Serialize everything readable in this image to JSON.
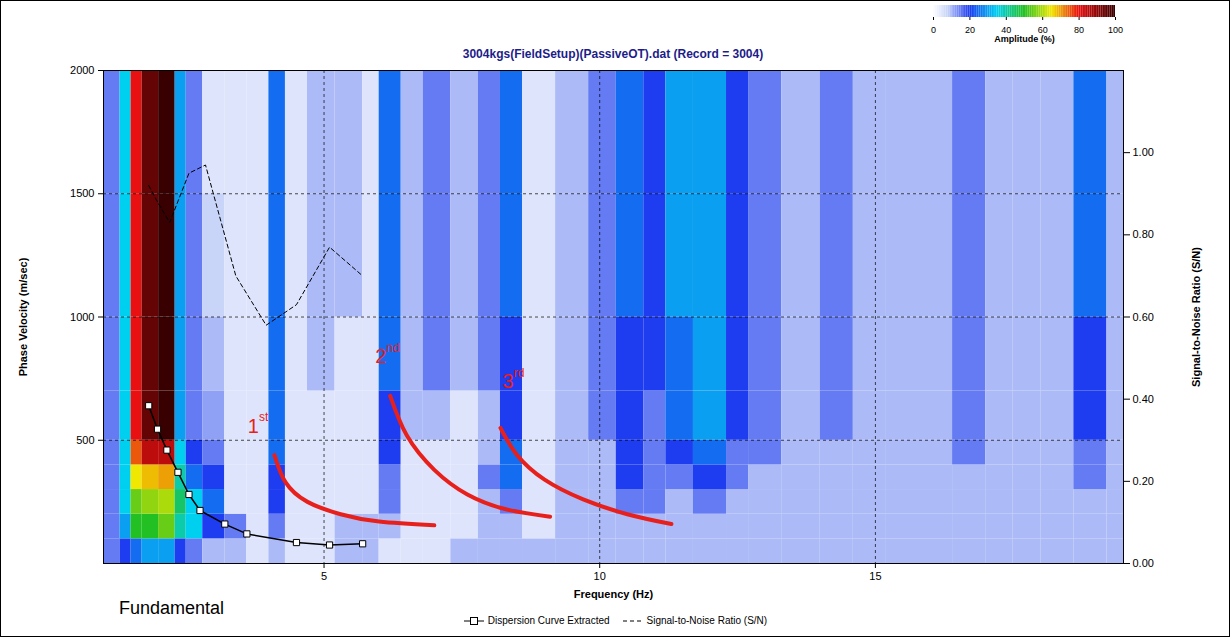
{
  "chart_data": {
    "type": "heatmap",
    "title": "3004kgs(FieldSetup)(PassiveOT).dat (Record = 3004)",
    "x_label": "Frequency (Hz)",
    "y_label": "Phase Velocity (m/sec)",
    "y2_label": "Signal-to-Noise Ratio (S/N)",
    "xlim": [
      1,
      19.5
    ],
    "xticks": [
      5,
      10,
      15
    ],
    "ylim": [
      0,
      2000
    ],
    "yticks": [
      500,
      1000,
      1500,
      2000
    ],
    "y2lim": [
      0,
      1.2
    ],
    "y2ticks": [
      {
        "value": 0,
        "label": "0.00"
      },
      {
        "value": 0.2,
        "label": "0.20"
      },
      {
        "value": 0.4,
        "label": "0.40"
      },
      {
        "value": 0.6,
        "label": "0.60"
      },
      {
        "value": 0.8,
        "label": "0.80"
      },
      {
        "value": 1.0,
        "label": "1.00"
      }
    ],
    "grid": true,
    "legend": "bottom",
    "heatmap": {
      "x_edges": [
        1,
        1.3,
        1.5,
        1.7,
        2.0,
        2.3,
        2.5,
        2.8,
        3.2,
        3.6,
        4.0,
        4.3,
        4.7,
        5.2,
        5.7,
        6.0,
        6.4,
        6.8,
        7.3,
        7.8,
        8.2,
        8.6,
        9.2,
        9.8,
        10.3,
        10.8,
        11.2,
        11.7,
        12.3,
        12.7,
        13.3,
        14,
        14.6,
        15.2,
        15.8,
        16.4,
        17.0,
        17.5,
        18.0,
        18.6,
        19.2,
        19.5
      ],
      "y_edges": [
        0,
        100,
        200,
        300,
        400,
        500,
        700,
        1000,
        1500,
        2000
      ],
      "cells": [
        [
          15,
          15,
          15,
          15,
          15,
          15,
          15,
          15,
          15
        ],
        [
          20,
          30,
          35,
          35,
          35,
          35,
          35,
          35,
          35
        ],
        [
          25,
          50,
          55,
          65,
          75,
          80,
          80,
          80,
          80
        ],
        [
          30,
          50,
          58,
          68,
          85,
          95,
          95,
          95,
          95
        ],
        [
          30,
          55,
          60,
          70,
          85,
          100,
          100,
          100,
          100
        ],
        [
          20,
          40,
          45,
          40,
          35,
          30,
          30,
          30,
          30
        ],
        [
          15,
          35,
          35,
          25,
          20,
          15,
          15,
          15,
          15
        ],
        [
          10,
          20,
          25,
          20,
          15,
          12,
          10,
          8,
          5
        ],
        [
          10,
          15,
          5,
          5,
          5,
          5,
          5,
          5,
          5
        ],
        [
          5,
          5,
          5,
          5,
          5,
          5,
          5,
          5,
          5
        ],
        [
          10,
          15,
          20,
          20,
          25,
          25,
          25,
          25,
          25
        ],
        [
          5,
          5,
          5,
          5,
          5,
          5,
          5,
          5,
          5
        ],
        [
          5,
          5,
          5,
          5,
          5,
          5,
          10,
          10,
          10
        ],
        [
          10,
          10,
          5,
          5,
          5,
          5,
          5,
          10,
          10
        ],
        [
          10,
          10,
          5,
          5,
          5,
          5,
          5,
          5,
          5
        ],
        [
          5,
          10,
          15,
          15,
          20,
          20,
          25,
          25,
          25
        ],
        [
          5,
          5,
          5,
          5,
          5,
          10,
          10,
          10,
          10
        ],
        [
          5,
          5,
          5,
          5,
          5,
          10,
          15,
          15,
          15
        ],
        [
          10,
          5,
          5,
          5,
          5,
          5,
          10,
          10,
          10
        ],
        [
          10,
          10,
          10,
          15,
          10,
          10,
          15,
          15,
          15
        ],
        [
          10,
          10,
          15,
          25,
          25,
          20,
          20,
          25,
          25
        ],
        [
          10,
          5,
          5,
          5,
          5,
          5,
          5,
          5,
          5
        ],
        [
          10,
          10,
          10,
          10,
          10,
          10,
          10,
          10,
          10
        ],
        [
          10,
          10,
          10,
          10,
          10,
          15,
          15,
          15,
          15
        ],
        [
          10,
          10,
          15,
          20,
          20,
          20,
          20,
          25,
          25
        ],
        [
          10,
          10,
          15,
          15,
          15,
          15,
          20,
          20,
          20
        ],
        [
          10,
          10,
          10,
          15,
          20,
          25,
          25,
          30,
          30
        ],
        [
          10,
          10,
          15,
          20,
          25,
          30,
          30,
          30,
          30
        ],
        [
          10,
          10,
          10,
          15,
          15,
          20,
          20,
          20,
          20
        ],
        [
          10,
          10,
          10,
          10,
          15,
          15,
          15,
          15,
          15
        ],
        [
          10,
          10,
          10,
          10,
          10,
          10,
          10,
          10,
          10
        ],
        [
          10,
          10,
          10,
          10,
          10,
          15,
          15,
          15,
          15
        ],
        [
          10,
          10,
          10,
          10,
          10,
          10,
          10,
          10,
          10
        ],
        [
          10,
          10,
          10,
          10,
          10,
          10,
          10,
          10,
          10
        ],
        [
          10,
          10,
          10,
          10,
          10,
          10,
          10,
          10,
          10
        ],
        [
          10,
          10,
          10,
          10,
          15,
          15,
          15,
          15,
          15
        ],
        [
          10,
          10,
          10,
          10,
          10,
          10,
          10,
          10,
          10
        ],
        [
          10,
          10,
          10,
          10,
          10,
          10,
          10,
          10,
          10
        ],
        [
          10,
          10,
          10,
          10,
          10,
          10,
          10,
          10,
          10
        ],
        [
          10,
          10,
          10,
          15,
          15,
          20,
          20,
          25,
          25
        ],
        [
          10,
          10,
          10,
          10,
          10,
          10,
          10,
          10,
          10
        ]
      ]
    },
    "colorbar": {
      "label": "Amplitude (%)",
      "lim": [
        0,
        100
      ],
      "ticks": [
        0,
        20,
        40,
        60,
        80,
        100
      ]
    },
    "series": [
      {
        "name": "Dispersion Curve Extracted",
        "type": "line",
        "marker": "square",
        "color": "#000000",
        "x": [
          1.82,
          1.98,
          2.15,
          2.35,
          2.55,
          2.75,
          3.2,
          3.6,
          4.5,
          5.1,
          5.7
        ],
        "values": [
          640,
          545,
          460,
          370,
          280,
          215,
          160,
          120,
          85,
          75,
          80
        ]
      },
      {
        "name": "Signal-to-Noise Ratio (S/N)",
        "type": "line",
        "line_style": "dashed",
        "axis": "y2",
        "color": "#000000",
        "x": [
          1.82,
          1.98,
          2.2,
          2.55,
          2.85,
          3.4,
          3.95,
          4.5,
          5.1,
          5.7
        ],
        "values": [
          0.92,
          0.88,
          0.83,
          0.95,
          0.97,
          0.7,
          0.58,
          0.63,
          0.77,
          0.7
        ]
      }
    ],
    "annotations": [
      {
        "text": "1st",
        "x": 3.82,
        "y": 556,
        "color": "#e8201c",
        "curve": {
          "x": [
            4.1,
            4.3,
            4.7,
            5.3,
            6.0,
            7.0
          ],
          "y": [
            440,
            330,
            250,
            200,
            170,
            155
          ]
        }
      },
      {
        "text": "2nd",
        "x": 6.13,
        "y": 838,
        "color": "#e8201c",
        "curve": {
          "x": [
            6.2,
            6.5,
            7.0,
            7.6,
            8.3,
            9.1
          ],
          "y": [
            680,
            520,
            380,
            280,
            220,
            190
          ]
        }
      },
      {
        "text": "3rd",
        "x": 8.44,
        "y": 737,
        "color": "#e8201c",
        "curve": {
          "x": [
            8.2,
            8.5,
            9.0,
            9.7,
            10.5,
            11.3
          ],
          "y": [
            550,
            440,
            340,
            260,
            200,
            160
          ]
        }
      },
      {
        "text": "Fundamental"
      }
    ]
  }
}
